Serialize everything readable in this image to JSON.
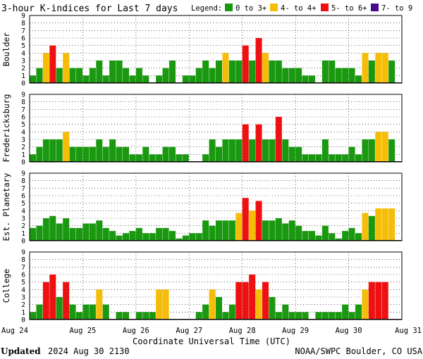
{
  "chart_data": {
    "type": "bar",
    "title": "3-hour K-indices for Last 7 days",
    "legend_label": "Legend:",
    "legend": [
      {
        "label": "0 to 3+",
        "color": "#1a9910"
      },
      {
        "label": "4- to 4+",
        "color": "#f5bd08"
      },
      {
        "label": "5- to 6+",
        "color": "#ee1111"
      },
      {
        "label": "7- to 9",
        "color": "#4a0a8a"
      }
    ],
    "legend_placement": "top",
    "xlabel": "Coordinate Universal Time (UTC)",
    "x_ticks": [
      "Aug 24",
      "Aug 25",
      "Aug 26",
      "Aug 27",
      "Aug 28",
      "Aug 29",
      "Aug 30",
      "Aug 31"
    ],
    "y_ticks": [
      "0",
      "1",
      "2",
      "3",
      "4",
      "5",
      "6",
      "7",
      "8",
      "9"
    ],
    "ylim": [
      0,
      9
    ],
    "grid": true,
    "panels": [
      {
        "name": "Boulder",
        "values": [
          1,
          2,
          4,
          5,
          2,
          4,
          2,
          2,
          1,
          2,
          3,
          1,
          3,
          3,
          2,
          1,
          2,
          1,
          0,
          1,
          2,
          3,
          0,
          1,
          1,
          2,
          3,
          2,
          3,
          4,
          3,
          3,
          5,
          3,
          6,
          4,
          3,
          3,
          2,
          2,
          2,
          1,
          1,
          0,
          3,
          3,
          2,
          2,
          2,
          1,
          4,
          3,
          4,
          4,
          3,
          0
        ]
      },
      {
        "name": "Fredericksburg",
        "values": [
          1,
          2,
          3,
          3,
          3,
          4,
          2,
          2,
          2,
          2,
          3,
          2,
          3,
          2,
          2,
          1,
          1,
          2,
          1,
          1,
          2,
          2,
          1,
          1,
          0,
          0,
          1,
          3,
          2,
          3,
          3,
          3,
          5,
          3,
          5,
          3,
          3,
          6,
          3,
          2,
          2,
          1,
          1,
          1,
          3,
          1,
          1,
          1,
          2,
          1,
          3,
          3,
          4,
          4,
          3,
          0
        ]
      },
      {
        "name": "Est. Planetary",
        "values": [
          1.7,
          2.0,
          3.0,
          3.3,
          2.3,
          3.0,
          1.7,
          1.7,
          2.3,
          2.3,
          2.7,
          1.7,
          1.3,
          0.7,
          1.0,
          1.3,
          1.7,
          1.0,
          1.0,
          1.7,
          1.7,
          1.3,
          0.3,
          0.7,
          1.0,
          1.0,
          2.7,
          2.0,
          2.7,
          2.7,
          2.7,
          3.7,
          5.7,
          4.0,
          5.3,
          2.7,
          2.7,
          3.0,
          2.3,
          2.7,
          2.0,
          1.3,
          1.3,
          0.7,
          2.0,
          1.0,
          0.3,
          1.3,
          1.7,
          1.0,
          3.7,
          3.3,
          4.3,
          4.3,
          4.3,
          0
        ]
      },
      {
        "name": "College",
        "values": [
          1,
          2,
          5,
          6,
          3,
          5,
          2,
          1,
          2,
          2,
          4,
          2,
          0,
          1,
          1,
          0,
          1,
          1,
          1,
          4,
          4,
          0,
          0,
          0,
          0,
          1,
          2,
          4,
          3,
          1,
          2,
          5,
          5,
          6,
          4,
          5,
          3,
          1,
          2,
          1,
          1,
          1,
          0,
          1,
          1,
          1,
          1,
          2,
          1,
          2,
          4,
          5,
          5,
          5,
          0,
          0
        ]
      }
    ]
  },
  "footer": {
    "updated_label": "Updated",
    "updated_value": "2024 Aug 30 2130",
    "source": "NOAA/SWPC Boulder, CO USA"
  }
}
